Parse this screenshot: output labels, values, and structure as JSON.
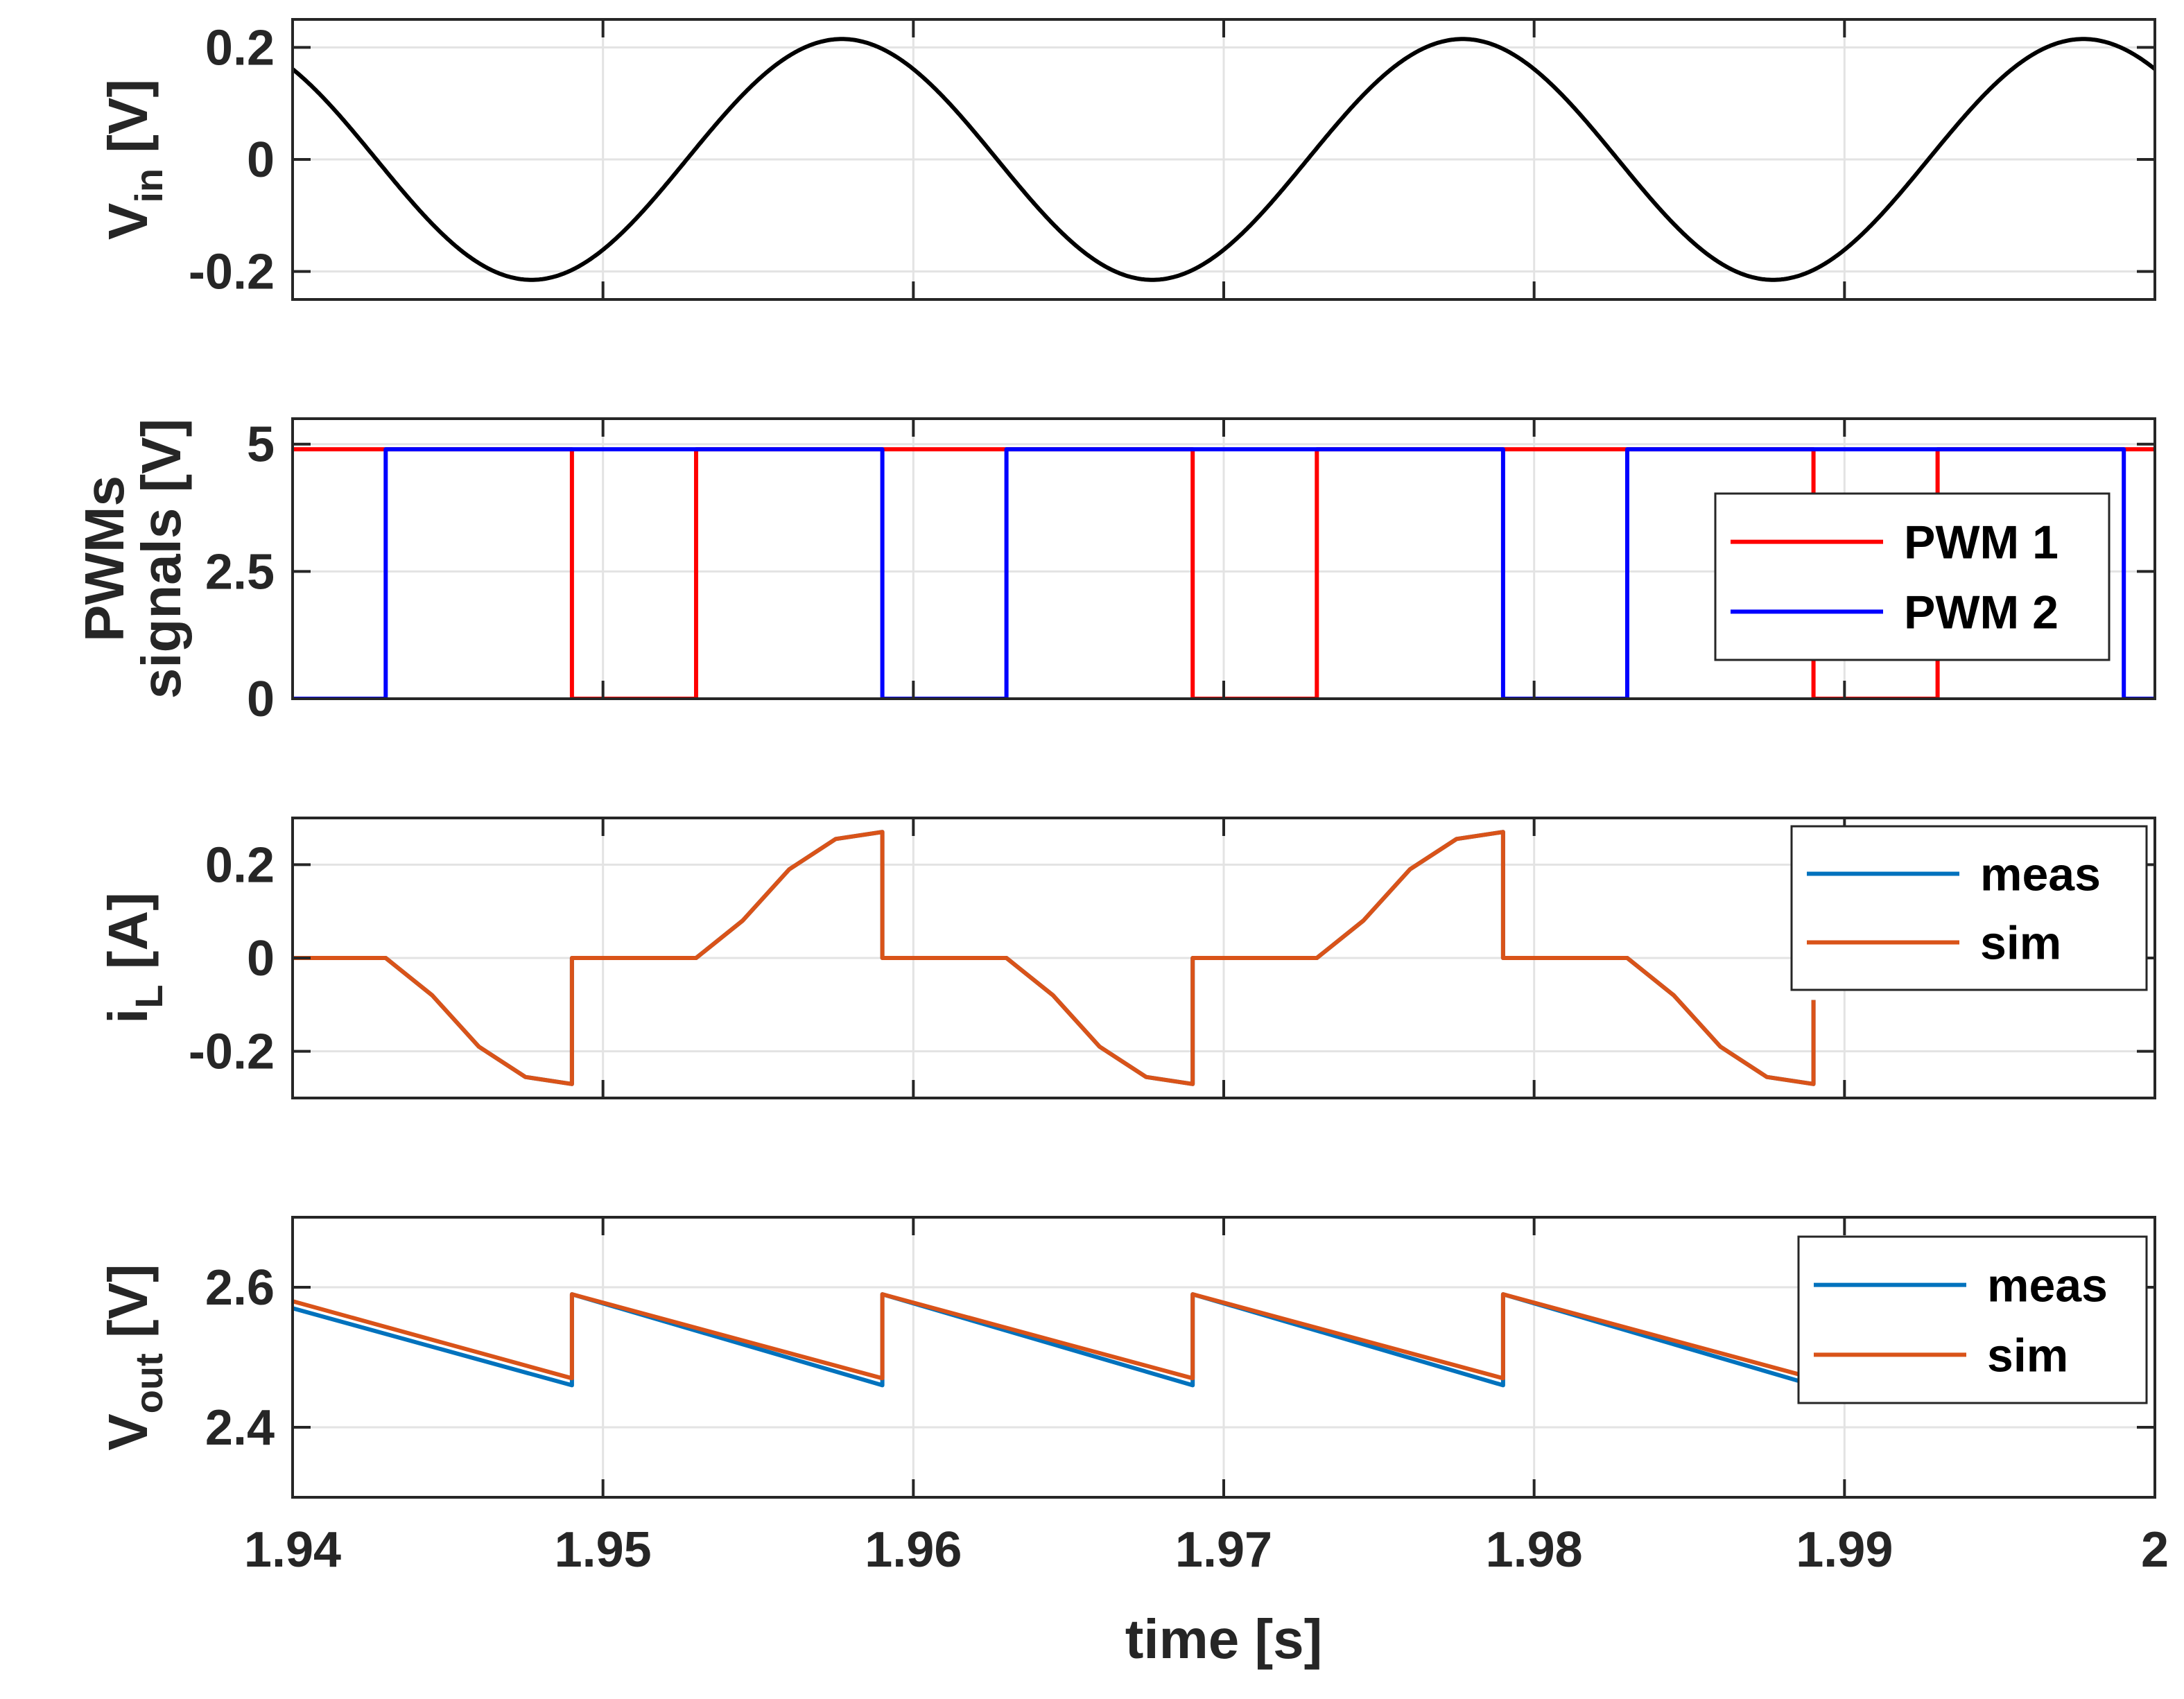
{
  "chart_data": [
    {
      "type": "line",
      "ylabel": {
        "main": "V",
        "sub": "in",
        "unit": "[V]"
      },
      "xlim": [
        1.94,
        2.0
      ],
      "ylim": [
        -0.25,
        0.25
      ],
      "yticks": [
        -0.2,
        0,
        0.2
      ],
      "ytick_labels": [
        "-0.2",
        "0",
        "0.2"
      ],
      "grid": true,
      "series": [
        {
          "name": "V_in",
          "color": "#000000",
          "kind": "sine",
          "amplitude": 0.215,
          "frequency_hz": 50,
          "peak_time": 1.9577
        }
      ]
    },
    {
      "type": "line",
      "ylabel": {
        "line1": "PWMs",
        "line2": "signals  [V]"
      },
      "xlim": [
        1.94,
        2.0
      ],
      "ylim": [
        0,
        5.5
      ],
      "yticks": [
        0,
        2.5,
        5
      ],
      "ytick_labels": [
        "0",
        "2.5",
        "5"
      ],
      "grid": true,
      "legend": "right",
      "series": [
        {
          "name": "PWM 1",
          "color": "#ff0000",
          "x": [
            1.94,
            1.949,
            1.949,
            1.953,
            1.953,
            1.969,
            1.969,
            1.973,
            1.973,
            1.989,
            1.989,
            1.993,
            1.993,
            2.0
          ],
          "y": [
            4.9,
            4.9,
            0,
            0,
            4.9,
            4.9,
            0,
            0,
            4.9,
            4.9,
            0,
            0,
            4.9,
            4.9
          ]
        },
        {
          "name": "PWM 2",
          "color": "#0000ff",
          "x": [
            1.94,
            1.943,
            1.943,
            1.959,
            1.959,
            1.963,
            1.963,
            1.979,
            1.979,
            1.983,
            1.983,
            1.999,
            1.999,
            2.0
          ],
          "y": [
            0,
            0,
            4.9,
            4.9,
            0,
            0,
            4.9,
            4.9,
            0,
            0,
            4.9,
            4.9,
            0,
            0
          ]
        }
      ]
    },
    {
      "type": "line",
      "ylabel": {
        "main": "i",
        "sub": "L",
        "unit": "[A]"
      },
      "xlim": [
        1.94,
        2.0
      ],
      "ylim": [
        -0.3,
        0.3
      ],
      "yticks": [
        -0.2,
        0,
        0.2
      ],
      "ytick_labels": [
        "-0.2",
        "0",
        "0.2"
      ],
      "grid": true,
      "legend": "top-right",
      "series": [
        {
          "name": "meas",
          "color": "#0072bd",
          "x": [
            1.94,
            1.943,
            1.9445,
            1.946,
            1.9475,
            1.949,
            1.949,
            1.953,
            1.9545,
            1.956,
            1.9575,
            1.959,
            1.959,
            1.963,
            1.9645,
            1.966,
            1.9675,
            1.969,
            1.969,
            1.973,
            1.9745,
            1.976,
            1.9775,
            1.979,
            1.979,
            1.983,
            1.9845,
            1.986,
            1.9875,
            1.989,
            1.989
          ],
          "y": [
            0,
            0,
            -0.08,
            -0.19,
            -0.255,
            -0.27,
            0,
            0,
            0.08,
            0.19,
            0.255,
            0.27,
            0,
            0,
            -0.08,
            -0.19,
            -0.255,
            -0.27,
            0,
            0,
            0.08,
            0.19,
            0.255,
            0.27,
            0,
            0,
            -0.08,
            -0.19,
            -0.255,
            -0.27,
            -0.09
          ]
        },
        {
          "name": "sim",
          "color": "#d95319",
          "x": [
            1.94,
            1.943,
            1.9445,
            1.946,
            1.9475,
            1.949,
            1.949,
            1.953,
            1.9545,
            1.956,
            1.9575,
            1.959,
            1.959,
            1.963,
            1.9645,
            1.966,
            1.9675,
            1.969,
            1.969,
            1.973,
            1.9745,
            1.976,
            1.9775,
            1.979,
            1.979,
            1.983,
            1.9845,
            1.986,
            1.9875,
            1.989,
            1.989
          ],
          "y": [
            0,
            0,
            -0.08,
            -0.19,
            -0.255,
            -0.27,
            0,
            0,
            0.08,
            0.19,
            0.255,
            0.27,
            0,
            0,
            -0.08,
            -0.19,
            -0.255,
            -0.27,
            0,
            0,
            0.08,
            0.19,
            0.255,
            0.27,
            0,
            0,
            -0.08,
            -0.19,
            -0.255,
            -0.27,
            -0.09
          ]
        }
      ]
    },
    {
      "type": "line",
      "ylabel": {
        "main": "V",
        "sub": "out",
        "unit": "[V]"
      },
      "xlim": [
        1.94,
        2.0
      ],
      "ylim": [
        2.3,
        2.7
      ],
      "yticks": [
        2.4,
        2.6
      ],
      "ytick_labels": [
        "2.4",
        "2.6"
      ],
      "xticks": [
        1.94,
        1.95,
        1.96,
        1.97,
        1.98,
        1.99,
        2.0
      ],
      "xtick_labels": [
        "1.94",
        "1.95",
        "1.96",
        "1.97",
        "1.98",
        "1.99",
        "2"
      ],
      "xlabel": "time [s]",
      "grid": true,
      "legend": "top-right",
      "series": [
        {
          "name": "meas",
          "color": "#0072bd",
          "x": [
            1.94,
            1.949,
            1.949,
            1.959,
            1.959,
            1.969,
            1.969,
            1.979,
            1.979,
            1.989
          ],
          "y": [
            2.57,
            2.46,
            2.59,
            2.46,
            2.59,
            2.46,
            2.59,
            2.46,
            2.59,
            2.46
          ]
        },
        {
          "name": "sim",
          "color": "#d95319",
          "x": [
            1.94,
            1.949,
            1.949,
            1.959,
            1.959,
            1.969,
            1.969,
            1.979,
            1.979,
            1.989
          ],
          "y": [
            2.58,
            2.47,
            2.59,
            2.47,
            2.59,
            2.47,
            2.59,
            2.47,
            2.59,
            2.47
          ]
        }
      ]
    }
  ]
}
